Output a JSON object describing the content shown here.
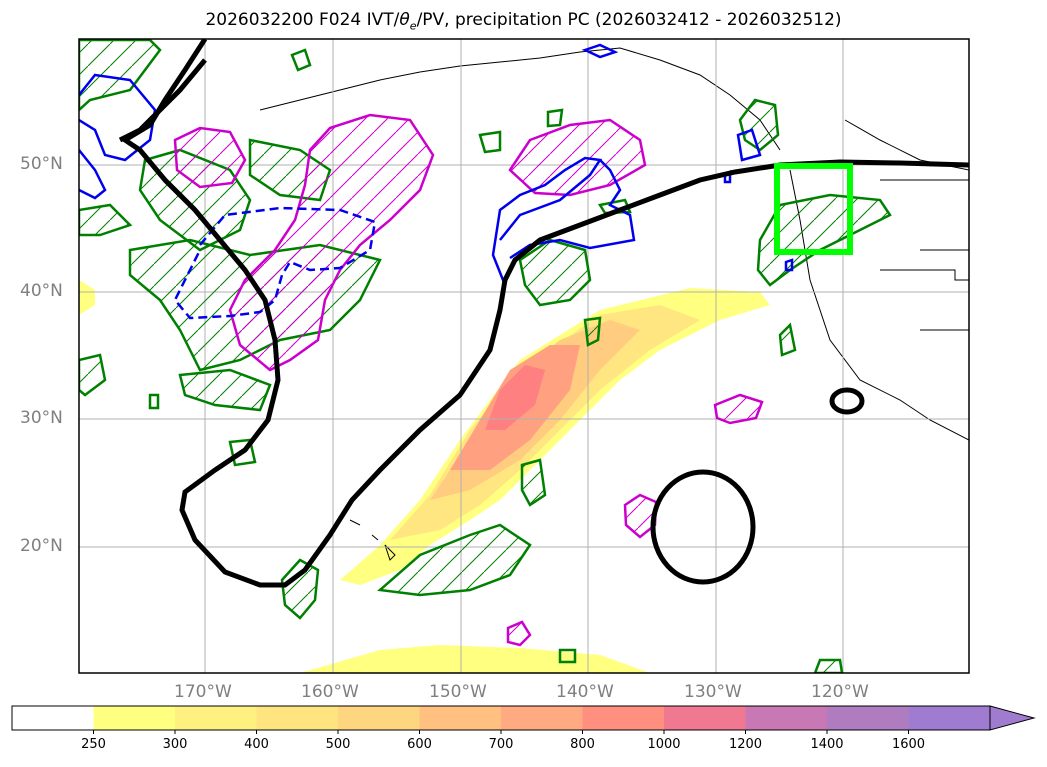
{
  "title_main": "2026032200 F024 IVT/",
  "title_theta": "θ",
  "title_sub": "e",
  "title_rest": "/PV, precipitation PC (2026032412 - 2026032512)",
  "lat_labels": [
    "50°N",
    "40°N",
    "30°N",
    "20°N"
  ],
  "lon_labels": [
    "170°W",
    "160°W",
    "150°W",
    "140°W",
    "130°W",
    "120°W"
  ],
  "colorbar": {
    "ticks": [
      "250",
      "300",
      "400",
      "500",
      "600",
      "700",
      "800",
      "1000",
      "1200",
      "1400",
      "1600"
    ],
    "colors": [
      "#ffffff",
      "#ffff80",
      "#fff180",
      "#ffe480",
      "#ffd680",
      "#ffc080",
      "#ffaa80",
      "#ff9080",
      "#f07890",
      "#c878b4",
      "#b07cc0",
      "#a07cd0"
    ]
  },
  "contour_colors": {
    "ridge": "#000000",
    "theta": "#008000",
    "pv_magenta": "#cc00cc",
    "pv_blue": "#0000ee",
    "box": "#00ff00"
  }
}
